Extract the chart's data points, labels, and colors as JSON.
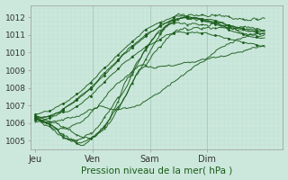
{
  "title": "Pression niveau de la mer( hPa )",
  "bg_color": "#cce8dc",
  "grid_major_color": "#aacfbf",
  "grid_minor_color": "#bdddd0",
  "line_color": "#1a5c1a",
  "ylim": [
    1004.5,
    1012.7
  ],
  "yticks": [
    1005,
    1006,
    1007,
    1008,
    1009,
    1010,
    1011,
    1012
  ],
  "x_day_labels": [
    "Jeu",
    "Ven",
    "Sam",
    "Dim"
  ],
  "num_points": 200,
  "figsize": [
    3.2,
    2.0
  ],
  "dpi": 100
}
